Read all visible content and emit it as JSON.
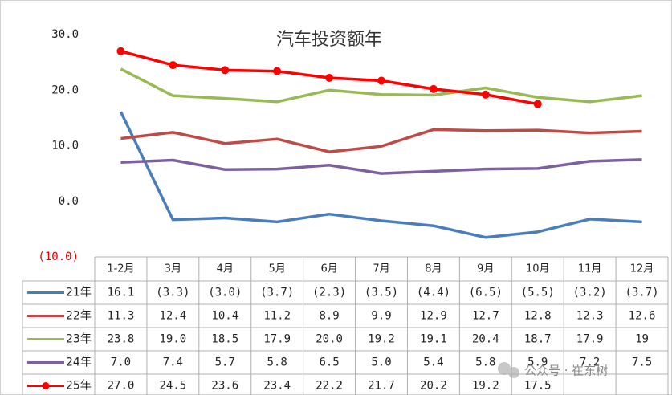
{
  "chart_data": {
    "type": "line",
    "title": "汽车投资额年",
    "watermark": "公众号 · 崔东树",
    "categories": [
      "1-2月",
      "3月",
      "4月",
      "5月",
      "6月",
      "7月",
      "8月",
      "9月",
      "10月",
      "11月",
      "12月"
    ],
    "ylim": [
      -10,
      30
    ],
    "yticks": [
      {
        "value": -10,
        "label": "(10.0)"
      },
      {
        "value": 0,
        "label": "0.0"
      },
      {
        "value": 10,
        "label": "10.0"
      },
      {
        "value": 20,
        "label": "20.0"
      },
      {
        "value": 30,
        "label": "30.0"
      }
    ],
    "series": [
      {
        "name": "21年",
        "color": "#4a7ebb",
        "markers": false,
        "values": [
          16.1,
          -3.3,
          -3.0,
          -3.7,
          -2.3,
          -3.5,
          -4.4,
          -6.5,
          -5.5,
          -3.2,
          -3.7
        ],
        "value_labels": [
          "16.1",
          "(3.3)",
          "(3.0)",
          "(3.7)",
          "(2.3)",
          "(3.5)",
          "(4.4)",
          "(6.5)",
          "(5.5)",
          "(3.2)",
          "(3.7)"
        ]
      },
      {
        "name": "22年",
        "color": "#be4b48",
        "markers": false,
        "values": [
          11.3,
          12.4,
          10.4,
          11.2,
          8.9,
          9.9,
          12.9,
          12.7,
          12.8,
          12.3,
          12.6
        ],
        "value_labels": [
          "11.3",
          "12.4",
          "10.4",
          "11.2",
          "8.9",
          "9.9",
          "12.9",
          "12.7",
          "12.8",
          "12.3",
          "12.6"
        ]
      },
      {
        "name": "23年",
        "color": "#98b954",
        "markers": false,
        "values": [
          23.8,
          19.0,
          18.5,
          17.9,
          20.0,
          19.2,
          19.1,
          20.4,
          18.7,
          17.9,
          19
        ],
        "value_labels": [
          "23.8",
          "19.0",
          "18.5",
          "17.9",
          "20.0",
          "19.2",
          "19.1",
          "20.4",
          "18.7",
          "17.9",
          "19"
        ]
      },
      {
        "name": "24年",
        "color": "#7d60a0",
        "markers": false,
        "values": [
          7.0,
          7.4,
          5.7,
          5.8,
          6.5,
          5.0,
          5.4,
          5.8,
          5.9,
          7.2,
          7.5
        ],
        "value_labels": [
          "7.0",
          "7.4",
          "5.7",
          "5.8",
          "6.5",
          "5.0",
          "5.4",
          "5.8",
          "5.9",
          "7.2",
          "7.5"
        ]
      },
      {
        "name": "25年",
        "color": "#ff0000",
        "markers": true,
        "values": [
          27.0,
          24.5,
          23.6,
          23.4,
          22.2,
          21.7,
          20.2,
          19.2,
          17.5,
          null,
          null
        ],
        "value_labels": [
          "27.0",
          "24.5",
          "23.6",
          "23.4",
          "22.2",
          "21.7",
          "20.2",
          "19.2",
          "17.5",
          null,
          null
        ]
      }
    ]
  }
}
